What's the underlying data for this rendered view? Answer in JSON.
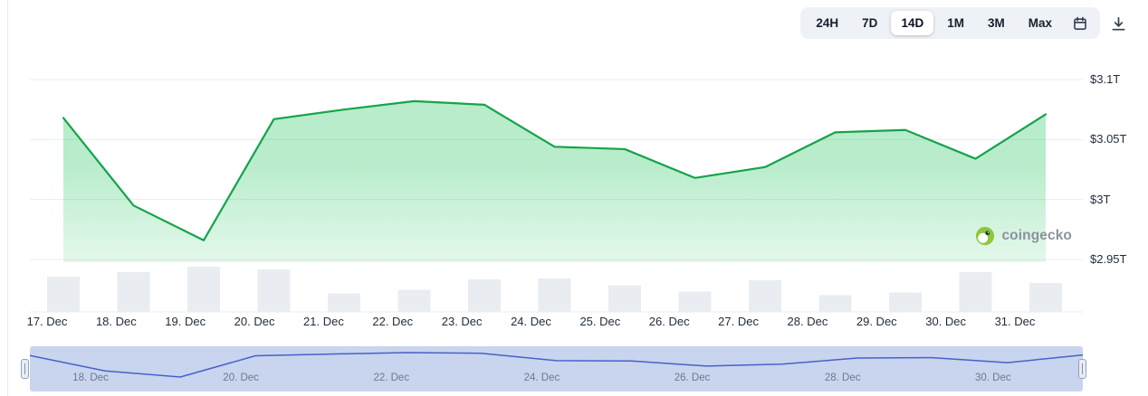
{
  "toolbar": {
    "ranges": [
      {
        "label": "24H",
        "selected": false
      },
      {
        "label": "7D",
        "selected": false
      },
      {
        "label": "14D",
        "selected": true
      },
      {
        "label": "1M",
        "selected": false
      },
      {
        "label": "3M",
        "selected": false
      },
      {
        "label": "Max",
        "selected": false
      }
    ],
    "icons": [
      "calendar-icon",
      "download-icon"
    ]
  },
  "watermark": {
    "text": "coingecko"
  },
  "chart_data": {
    "type": "line",
    "title": "",
    "categories": [
      "17. Dec",
      "18. Dec",
      "19. Dec",
      "20. Dec",
      "21. Dec",
      "22. Dec",
      "23. Dec",
      "24. Dec",
      "25. Dec",
      "26. Dec",
      "27. Dec",
      "28. Dec",
      "29. Dec",
      "30. Dec",
      "31. Dec"
    ],
    "series": [
      {
        "name": "market_cap_trillions_usd",
        "type": "line",
        "color": "#16a34a",
        "values": [
          3.068,
          2.995,
          2.966,
          3.067,
          3.075,
          3.082,
          3.079,
          3.044,
          3.042,
          3.018,
          3.027,
          3.056,
          3.058,
          3.034,
          3.071
        ]
      },
      {
        "name": "volume_relative",
        "type": "bar",
        "color": "#e9edf2",
        "values": [
          0.78,
          0.88,
          1.0,
          0.94,
          0.41,
          0.49,
          0.72,
          0.74,
          0.59,
          0.45,
          0.7,
          0.37,
          0.43,
          0.88,
          0.64
        ]
      }
    ],
    "y_axis": {
      "ticks": [
        "$3.1T",
        "$3.05T",
        "$3T",
        "$2.95T"
      ],
      "tick_values": [
        3.1,
        3.05,
        3.0,
        2.95
      ],
      "range": [
        2.95,
        3.1
      ],
      "position": "right"
    },
    "grid": "horizontal",
    "grid_color": "#e9edf1",
    "area_fill_top": "rgba(34,197,94,0.32)",
    "navigator": {
      "labels": [
        "18. Dec",
        "20. Dec",
        "22. Dec",
        "24. Dec",
        "26. Dec",
        "28. Dec",
        "30. Dec"
      ],
      "line_color": "#4563c9",
      "bg": "#c9d4ee"
    },
    "legend": "none"
  }
}
